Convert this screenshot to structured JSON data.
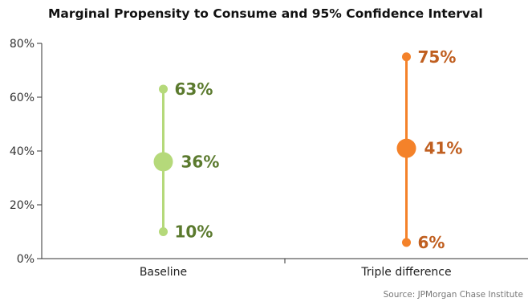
{
  "chart_data": {
    "type": "errorbar",
    "title": "Marginal Propensity to Consume and 95% Confidence Interval",
    "categories": [
      "Baseline",
      "Triple difference"
    ],
    "series": [
      {
        "category": "Baseline",
        "estimate": 36,
        "lower": 10,
        "upper": 63,
        "labels": {
          "estimate": "36%",
          "lower": "10%",
          "upper": "63%"
        },
        "line_color": "#b5d97a",
        "label_color": "#5b7a2e"
      },
      {
        "category": "Triple difference",
        "estimate": 41,
        "lower": 6,
        "upper": 75,
        "labels": {
          "estimate": "41%",
          "lower": "6%",
          "upper": "75%"
        },
        "line_color": "#f4822a",
        "label_color": "#c05f20"
      }
    ],
    "y_ticks": [
      0,
      20,
      40,
      60,
      80
    ],
    "y_tick_labels": [
      "0%",
      "20%",
      "40%",
      "60%",
      "80%"
    ],
    "ylim": [
      0,
      80
    ],
    "grid": false
  },
  "source": "Source:  JPMorgan Chase Institute"
}
